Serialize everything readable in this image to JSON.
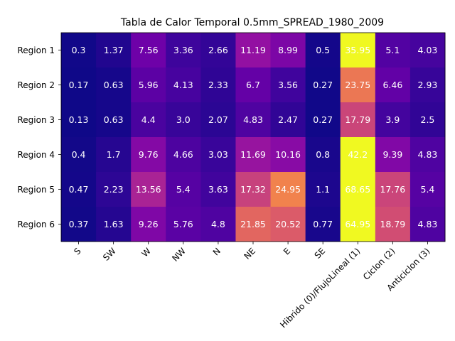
{
  "chart_data": {
    "type": "heatmap",
    "title": "Tabla de Calor Temporal 0.5mm_SPREAD_1980_2009",
    "xlabel": "",
    "ylabel": "",
    "colormap": "plasma",
    "grid": false,
    "legend": "none",
    "vmin": 0.13,
    "vmax": 68.65,
    "x_categories": [
      "S",
      "SW",
      "W",
      "NW",
      "N",
      "NE",
      "E",
      "SE",
      "Hibrido (0)/FlujoLineal (1)",
      "Ciclon (2)",
      "Anticiclon (3)"
    ],
    "y_categories": [
      "Region 1",
      "Region 2",
      "Region 3",
      "Region 4",
      "Region 5",
      "Region 6"
    ],
    "values": [
      [
        0.3,
        1.37,
        7.56,
        3.36,
        2.66,
        11.19,
        8.99,
        0.5,
        35.95,
        5.1,
        4.03
      ],
      [
        0.17,
        0.63,
        5.96,
        4.13,
        2.33,
        6.7,
        3.56,
        0.27,
        23.75,
        6.46,
        2.93
      ],
      [
        0.13,
        0.63,
        4.4,
        3.0,
        2.07,
        4.83,
        2.47,
        0.27,
        17.79,
        3.9,
        2.5
      ],
      [
        0.4,
        1.7,
        9.76,
        4.66,
        3.03,
        11.69,
        10.16,
        0.8,
        42.2,
        9.39,
        4.83
      ],
      [
        0.47,
        2.23,
        13.56,
        5.4,
        3.63,
        17.32,
        24.95,
        1.1,
        68.65,
        17.76,
        5.4
      ],
      [
        0.37,
        1.63,
        9.26,
        5.76,
        4.8,
        21.85,
        20.52,
        0.77,
        64.95,
        18.79,
        4.83
      ]
    ],
    "cell_labels": [
      [
        "0.3",
        "1.37",
        "7.56",
        "3.36",
        "2.66",
        "11.19",
        "8.99",
        "0.5",
        "35.95",
        "5.1",
        "4.03"
      ],
      [
        "0.17",
        "0.63",
        "5.96",
        "4.13",
        "2.33",
        "6.7",
        "3.56",
        "0.27",
        "23.75",
        "6.46",
        "2.93"
      ],
      [
        "0.13",
        "0.63",
        "4.4",
        "3.0",
        "2.07",
        "4.83",
        "2.47",
        "0.27",
        "17.79",
        "3.9",
        "2.5"
      ],
      [
        "0.4",
        "1.7",
        "9.76",
        "4.66",
        "3.03",
        "11.69",
        "10.16",
        "0.8",
        "42.2",
        "9.39",
        "4.83"
      ],
      [
        "0.47",
        "2.23",
        "13.56",
        "5.4",
        "3.63",
        "17.32",
        "24.95",
        "1.1",
        "68.65",
        "17.76",
        "5.4"
      ],
      [
        "0.37",
        "1.63",
        "9.26",
        "5.76",
        "4.8",
        "21.85",
        "20.52",
        "0.77",
        "64.95",
        "18.79",
        "4.83"
      ]
    ]
  }
}
